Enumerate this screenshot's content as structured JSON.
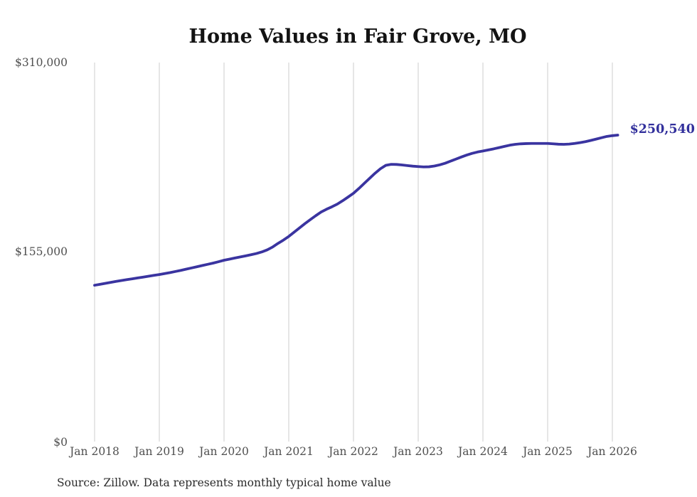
{
  "source": {
    "text": "Source: Zillow. Data represents monthly typical home value"
  },
  "colors": {
    "line": "#3a34a0",
    "end_label": "#32309c",
    "grid": "#cccccc",
    "axis_text": "#4f4f4f",
    "title_text": "#131313",
    "source_text": "#2b2b2b"
  },
  "chart_data": {
    "type": "line",
    "title": "Home Values in Fair Grove, MO",
    "x_start": "Jan 2018",
    "x_end": "Feb 2026",
    "frequency": "monthly",
    "x_tick_labels": [
      "Jan 2018",
      "Jan 2019",
      "Jan 2020",
      "Jan 2021",
      "Jan 2022",
      "Jan 2023",
      "Jan 2024",
      "Jan 2025",
      "Jan 2026"
    ],
    "y_ticks": [
      {
        "label": "$310,000",
        "value": 310000
      },
      {
        "label": "$155,000",
        "value": 155000
      },
      {
        "label": "$0",
        "value": 0
      }
    ],
    "ylim": [
      0,
      310000
    ],
    "grid": "vertical",
    "legend": "none",
    "end_label": "$250,540",
    "end_value": 250540,
    "series": [
      {
        "name": "Typical home value",
        "values": [
          127500,
          128300,
          129100,
          129900,
          130700,
          131400,
          132100,
          132800,
          133500,
          134200,
          134900,
          135600,
          136300,
          137100,
          137900,
          138800,
          139700,
          140700,
          141700,
          142700,
          143700,
          144700,
          145700,
          146800,
          148000,
          148900,
          149800,
          150700,
          151600,
          152500,
          153500,
          154800,
          156500,
          158800,
          161800,
          164500,
          167500,
          171000,
          174500,
          178000,
          181300,
          184500,
          187500,
          189800,
          191800,
          194000,
          196800,
          199800,
          202900,
          206800,
          211000,
          215200,
          219300,
          223000,
          225800,
          226600,
          226500,
          226100,
          225600,
          225100,
          224800,
          224500,
          224600,
          225200,
          226200,
          227500,
          229200,
          230900,
          232600,
          234200,
          235600,
          236700,
          237500,
          238400,
          239300,
          240300,
          241300,
          242300,
          243000,
          243400,
          243600,
          243700,
          243700,
          243700,
          243700,
          243400,
          243100,
          243000,
          243200,
          243700,
          244400,
          245200,
          246200,
          247300,
          248400,
          249500,
          250100,
          250540
        ]
      }
    ]
  }
}
